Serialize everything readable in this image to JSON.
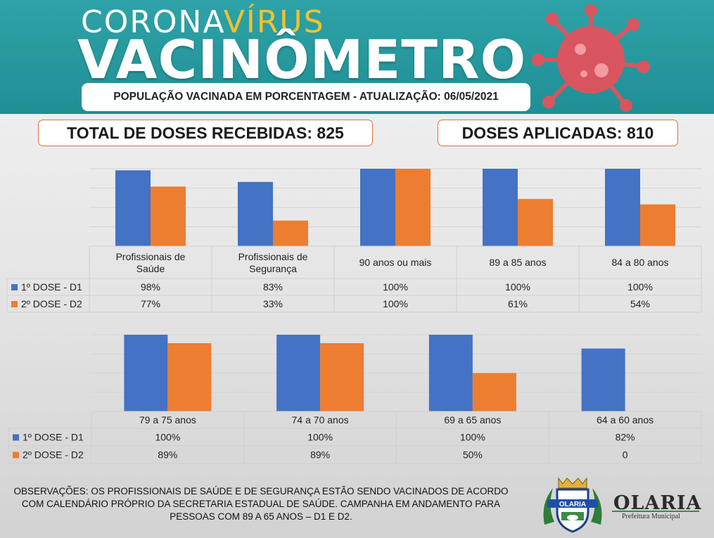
{
  "header": {
    "brand_part1": "CORONA",
    "brand_part2": "VÍRUS",
    "brand_title": "VACINÔMETRO",
    "update_text": "POPULAÇÃO VACINADA EM PORCENTAGEM - ATUALIZAÇÃO: 06/05/2021"
  },
  "totals": {
    "received_label": "TOTAL DE DOSES RECEBIDAS: 825",
    "applied_label": "DOSES APLICADAS: 810"
  },
  "colors": {
    "dose1": "#4472c4",
    "dose2": "#ed7d31",
    "header_teal": "#1f8f95",
    "accent_yellow": "#f2c230",
    "border_orange": "#e46f3a"
  },
  "chart_data": [
    {
      "type": "bar",
      "categories": [
        "Profissionais de Saúde",
        "Profissionais de Segurança",
        "90 anos ou mais",
        "89 a 85 anos",
        "84 a 80 anos"
      ],
      "series": [
        {
          "name": "1º DOSE - D1",
          "values": [
            98,
            83,
            100,
            100,
            100
          ],
          "labels": [
            "98%",
            "83%",
            "100%",
            "100%",
            "100%"
          ]
        },
        {
          "name": "2º DOSE - D2",
          "values": [
            77,
            33,
            100,
            61,
            54
          ],
          "labels": [
            "77%",
            "33%",
            "100%",
            "61%",
            "54%"
          ]
        }
      ],
      "ylim": [
        0,
        100
      ],
      "grid": true,
      "legend": "data-table"
    },
    {
      "type": "bar",
      "categories": [
        "79 a 75 anos",
        "74 a 70 anos",
        "69 a 65 anos",
        "64 a 60 anos"
      ],
      "series": [
        {
          "name": "1º DOSE - D1",
          "values": [
            100,
            100,
            100,
            82
          ],
          "labels": [
            "100%",
            "100%",
            "100%",
            "82%"
          ]
        },
        {
          "name": "2º DOSE - D2",
          "values": [
            89,
            89,
            50,
            0
          ],
          "labels": [
            "89%",
            "89%",
            "50%",
            "0"
          ]
        }
      ],
      "ylim": [
        0,
        100
      ],
      "grid": true,
      "legend": "data-table"
    }
  ],
  "footer": {
    "observations": "OBSERVAÇÕES: OS PROFISSIONAIS DE SAÚDE E DE SEGURANÇA ESTÃO SENDO VACINADOS DE ACORDO COM CALENDÁRIO PRÓPRIO DA SECRETARIA ESTADUAL DE SAÚDE. CAMPANHA EM ANDAMENTO PARA PESSOAS COM 89 A 65 ANOS – D1 E D2.",
    "logo_banner": "OLARIA",
    "org_name": "OLARIA",
    "org_subtitle": "Prefeitura Municipal"
  }
}
